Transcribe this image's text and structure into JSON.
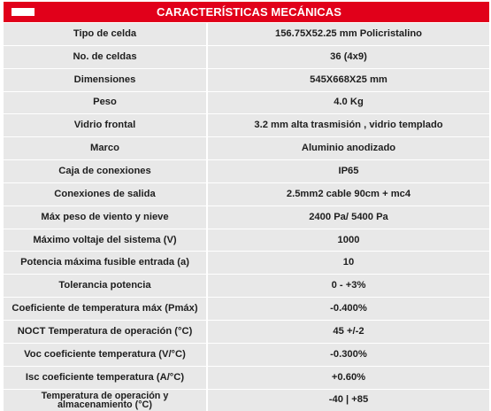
{
  "colors": {
    "brand": "#E1001A",
    "row_bg": "#E8E8E8",
    "row_bg_alt": "#E8E8E8"
  },
  "header": {
    "title": "CARACTERÍSTICAS MECÁNICAS",
    "flag_icon": "flag-icon"
  },
  "rows": [
    {
      "label": "Tipo de celda",
      "value": "156.75X52.25 mm Policristalino"
    },
    {
      "label": "No. de celdas",
      "value": "36 (4x9)"
    },
    {
      "label": "Dimensiones",
      "value": "545X668X25 mm"
    },
    {
      "label": "Peso",
      "value": "4.0 Kg"
    },
    {
      "label": "Vidrio frontal",
      "value": "3.2 mm alta trasmisión , vidrio templado"
    },
    {
      "label": "Marco",
      "value": "Aluminio anodizado"
    },
    {
      "label": "Caja de conexiones",
      "value": "IP65"
    },
    {
      "label": "Conexiones de salida",
      "value": "2.5mm2 cable 90cm + mc4"
    },
    {
      "label": "Máx peso de viento y nieve",
      "value": "2400 Pa/ 5400 Pa"
    },
    {
      "label": "Máximo voltaje del sistema (V)",
      "value": "1000"
    },
    {
      "label": "Potencia máxima fusible entrada (a)",
      "value": "10"
    },
    {
      "label": "Tolerancia potencia",
      "value": "0 - +3%"
    },
    {
      "label": "Coeficiente de temperatura máx (Pmáx)",
      "value": "-0.400%"
    },
    {
      "label": "NOCT Temperatura de operación (°C)",
      "value": "45 +/-2"
    },
    {
      "label": "Voc coeficiente temperatura (V/°C)",
      "value": "-0.300%"
    },
    {
      "label": "Isc coeficiente temperatura (A/°C)",
      "value": "+0.60%"
    },
    {
      "label": "Temperatura de operación y almacenamiento (°C)",
      "value": "-40 | +85"
    }
  ]
}
